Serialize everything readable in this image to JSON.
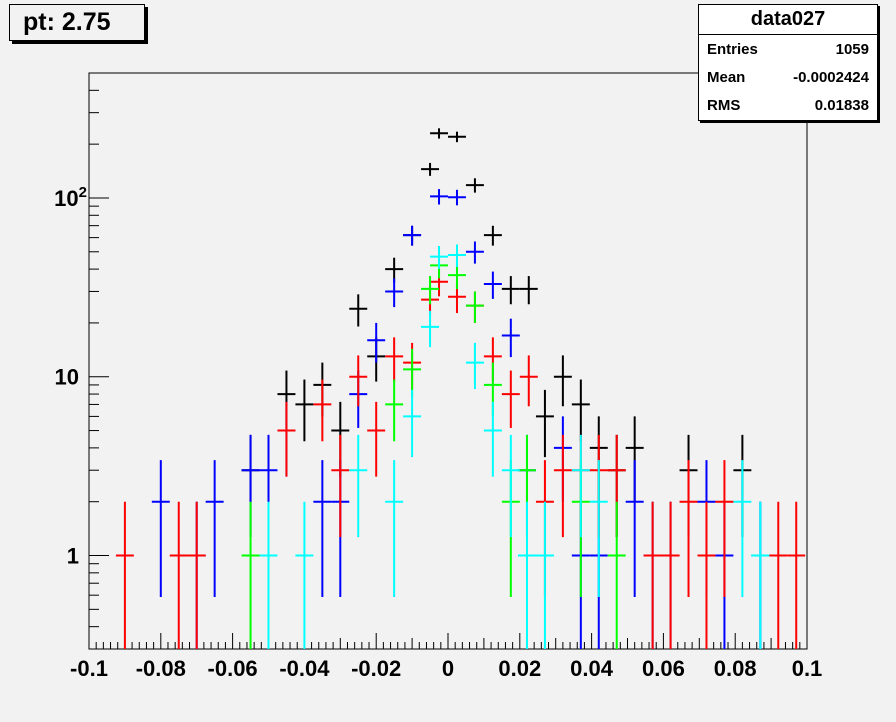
{
  "title": "pt: 2.75",
  "stats": {
    "name": "data027",
    "rows": [
      {
        "label": "Entries",
        "value": "1059"
      },
      {
        "label": "Mean",
        "value": "-0.0002424"
      },
      {
        "label": "RMS",
        "value": "0.01838"
      }
    ]
  },
  "chart_data": {
    "type": "scatter",
    "title": "pt: 2.75",
    "xlabel": "",
    "ylabel": "",
    "xlim": [
      -0.1,
      0.1
    ],
    "ylim": [
      0.3,
      500
    ],
    "yscale": "log",
    "grid": false,
    "x_ticks": [
      -0.1,
      -0.08,
      -0.06,
      -0.04,
      -0.02,
      0,
      0.02,
      0.04,
      0.06,
      0.08,
      0.1
    ],
    "x_tick_labels": [
      "-0.1",
      "-0.08",
      "-0.06",
      "-0.04",
      "-0.02",
      "0",
      "0.02",
      "0.04",
      "0.06",
      "0.08",
      "0.1"
    ],
    "y_tick_labels": [
      "1",
      "10",
      "10^2"
    ],
    "bin_width": 0.005,
    "series": [
      {
        "color": "#000000",
        "points": [
          [
            -0.055,
            3
          ],
          [
            -0.045,
            8
          ],
          [
            -0.04,
            7
          ],
          [
            -0.035,
            9
          ],
          [
            -0.03,
            5
          ],
          [
            -0.025,
            24
          ],
          [
            -0.02,
            13
          ],
          [
            -0.015,
            40
          ],
          [
            -0.01,
            62
          ],
          [
            -0.005,
            145
          ],
          [
            -0.0025,
            230
          ],
          [
            0.0025,
            220
          ],
          [
            0.0075,
            118
          ],
          [
            0.0125,
            62
          ],
          [
            0.0175,
            31
          ],
          [
            0.0225,
            31
          ],
          [
            0.027,
            6
          ],
          [
            0.032,
            10
          ],
          [
            0.037,
            7
          ],
          [
            0.042,
            4
          ],
          [
            0.047,
            3
          ],
          [
            0.052,
            4
          ],
          [
            0.067,
            3
          ],
          [
            0.082,
            3
          ]
        ]
      },
      {
        "color": "#0000ff",
        "points": [
          [
            -0.08,
            2
          ],
          [
            -0.07,
            1
          ],
          [
            -0.065,
            2
          ],
          [
            -0.055,
            3
          ],
          [
            -0.05,
            3
          ],
          [
            -0.045,
            5
          ],
          [
            -0.035,
            2
          ],
          [
            -0.03,
            2
          ],
          [
            -0.025,
            8
          ],
          [
            -0.02,
            16
          ],
          [
            -0.015,
            30
          ],
          [
            -0.01,
            62
          ],
          [
            -0.0025,
            102
          ],
          [
            0.0025,
            101
          ],
          [
            0.0075,
            50
          ],
          [
            0.0125,
            33
          ],
          [
            0.0175,
            17
          ],
          [
            0.022,
            3
          ],
          [
            0.032,
            4
          ],
          [
            0.037,
            1
          ],
          [
            0.042,
            1
          ],
          [
            0.052,
            2
          ],
          [
            0.057,
            1
          ],
          [
            0.062,
            1
          ],
          [
            0.072,
            2
          ],
          [
            0.077,
            1
          ],
          [
            0.087,
            1
          ]
        ]
      },
      {
        "color": "#ff0000",
        "points": [
          [
            -0.09,
            1
          ],
          [
            -0.075,
            1
          ],
          [
            -0.07,
            1
          ],
          [
            -0.045,
            5
          ],
          [
            -0.035,
            7
          ],
          [
            -0.03,
            3
          ],
          [
            -0.025,
            10
          ],
          [
            -0.02,
            5
          ],
          [
            -0.015,
            13
          ],
          [
            -0.01,
            12
          ],
          [
            -0.005,
            27
          ],
          [
            -0.0025,
            34
          ],
          [
            0.0025,
            28
          ],
          [
            0.0075,
            25
          ],
          [
            0.0125,
            13
          ],
          [
            0.0175,
            8
          ],
          [
            0.0225,
            10
          ],
          [
            0.027,
            2
          ],
          [
            0.032,
            3
          ],
          [
            0.037,
            3
          ],
          [
            0.042,
            3
          ],
          [
            0.047,
            3
          ],
          [
            0.057,
            1
          ],
          [
            0.062,
            1
          ],
          [
            0.067,
            2
          ],
          [
            0.072,
            1
          ],
          [
            0.077,
            2
          ],
          [
            0.092,
            1
          ],
          [
            0.097,
            1
          ]
        ]
      },
      {
        "color": "#00ff00",
        "points": [
          [
            -0.055,
            1
          ],
          [
            -0.015,
            7
          ],
          [
            -0.01,
            11
          ],
          [
            -0.005,
            31
          ],
          [
            -0.0025,
            42
          ],
          [
            0.0025,
            37
          ],
          [
            0.0075,
            25
          ],
          [
            0.0125,
            9
          ],
          [
            0.0175,
            2
          ],
          [
            0.022,
            3
          ],
          [
            0.037,
            2
          ],
          [
            0.047,
            1
          ]
        ]
      },
      {
        "color": "#00ffff",
        "points": [
          [
            -0.05,
            1
          ],
          [
            -0.04,
            1
          ],
          [
            -0.025,
            3
          ],
          [
            -0.015,
            2
          ],
          [
            -0.01,
            6
          ],
          [
            -0.005,
            19
          ],
          [
            -0.0025,
            47
          ],
          [
            0.0025,
            48
          ],
          [
            0.0075,
            12
          ],
          [
            0.0125,
            5
          ],
          [
            0.0175,
            3
          ],
          [
            0.022,
            1
          ],
          [
            0.027,
            1
          ],
          [
            0.037,
            3
          ],
          [
            0.042,
            2
          ],
          [
            0.082,
            2
          ],
          [
            0.087,
            1
          ]
        ]
      }
    ]
  }
}
